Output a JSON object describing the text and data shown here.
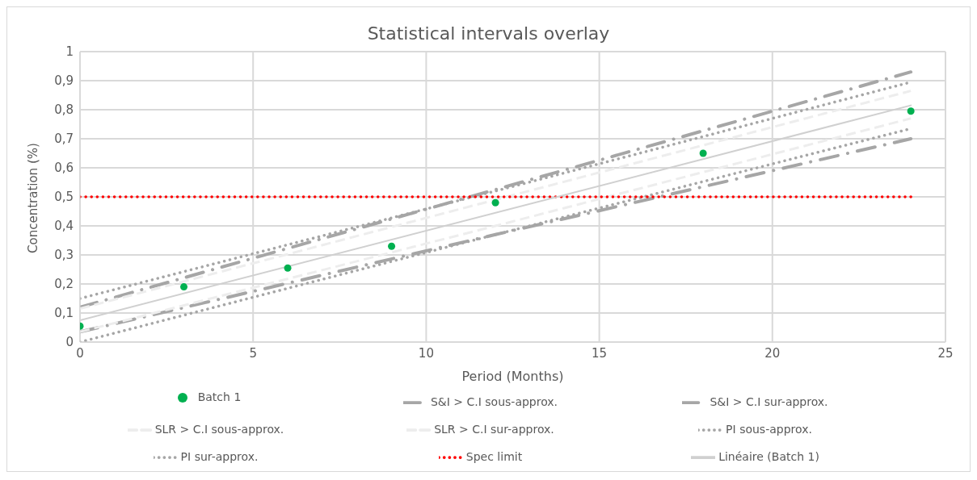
{
  "chart_data": {
    "type": "line",
    "title": "Statistical intervals overlay",
    "xlabel": "Period (Months)",
    "ylabel": "Concentration (%)",
    "xlim": [
      0,
      25
    ],
    "xticks": [
      0,
      5,
      10,
      15,
      20,
      25
    ],
    "ylim": [
      0,
      1
    ],
    "yticks": [
      0,
      {
        "value": 0.1,
        "label": "0,1"
      },
      {
        "value": 0.2,
        "label": "0,2"
      },
      {
        "value": 0.3,
        "label": "0,3"
      },
      {
        "value": 0.4,
        "label": "0,4"
      },
      {
        "value": 0.5,
        "label": "0,5"
      },
      {
        "value": 0.6,
        "label": "0,6"
      },
      {
        "value": 0.7,
        "label": "0,7"
      },
      {
        "value": 0.8,
        "label": "0,8"
      },
      {
        "value": 0.9,
        "label": "0,9"
      },
      1
    ],
    "grid": true,
    "legend": "bottom",
    "series": [
      {
        "name": "Batch 1",
        "type": "scatter",
        "marker": "circle",
        "color": "#00b050",
        "x": [
          0,
          3,
          6,
          9,
          12,
          18,
          24
        ],
        "values": [
          0.055,
          0.19,
          0.255,
          0.33,
          0.48,
          0.65,
          0.795
        ]
      },
      {
        "name": "S&I > C.I sous-approx.",
        "color": "#a6a6a6",
        "line_style": "dashdot",
        "x": [
          0,
          12,
          24
        ],
        "values": [
          0.035,
          0.37,
          0.7
        ]
      },
      {
        "name": "S&I > C.I sur-approx.",
        "color": "#a6a6a6",
        "line_style": "dashdot",
        "x": [
          0,
          12,
          24
        ],
        "values": [
          0.12,
          0.525,
          0.93
        ]
      },
      {
        "name": "SLR > C.I sous-approx.",
        "color": "#ededed",
        "line_style": "dashed",
        "x": [
          0,
          12,
          24
        ],
        "values": [
          0.035,
          0.4,
          0.77
        ]
      },
      {
        "name": "SLR > C.I sur-approx.",
        "color": "#ededed",
        "line_style": "dashed",
        "x": [
          0,
          12,
          24
        ],
        "values": [
          0.115,
          0.49,
          0.865
        ]
      },
      {
        "name": "PI sous-approx.",
        "color": "#a6a6a6",
        "line_style": "dotted",
        "x": [
          0,
          12,
          24
        ],
        "values": [
          0,
          0.37,
          0.735
        ]
      },
      {
        "name": "PI sur-approx.",
        "color": "#a6a6a6",
        "line_style": "dotted",
        "x": [
          0,
          12,
          24
        ],
        "values": [
          0.15,
          0.52,
          0.895
        ]
      },
      {
        "name": "Spec limit",
        "color": "#ff0000",
        "line_style": "dotted",
        "x": [
          0,
          24
        ],
        "values": [
          0.5,
          0.5
        ]
      },
      {
        "name": "Linéaire (Batch 1)",
        "color": "#d0d0d0",
        "line_style": "solid",
        "x": [
          0,
          24
        ],
        "values": [
          0.075,
          0.815
        ]
      }
    ]
  }
}
